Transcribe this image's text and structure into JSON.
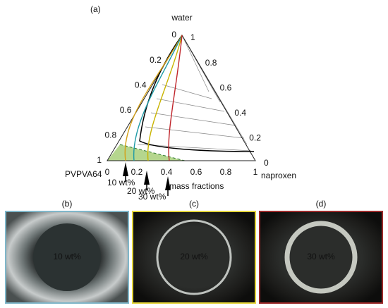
{
  "panel_a": {
    "label": "(a)",
    "apex_top": "water",
    "apex_left": "PVPVA64",
    "apex_right": "naproxen",
    "left_edge_ticks": [
      0,
      0.2,
      0.4,
      0.6,
      0.8,
      1
    ],
    "right_edge_ticks": [
      1,
      0.8,
      0.6,
      0.4,
      0.2,
      0
    ],
    "bottom_ticks": [
      0,
      0.2,
      0.4,
      0.6,
      0.8,
      1
    ],
    "axis_note": "mass fractions",
    "arrows": [
      {
        "label": "10 wt%",
        "color": "#1e9aa6"
      },
      {
        "label": "20 wt%",
        "color": "#c9b400"
      },
      {
        "label": "30 wt%",
        "color": "#c0262c"
      }
    ]
  },
  "photos": [
    {
      "label": "(b)",
      "text": "10 wt%",
      "border": "#7fb6c9"
    },
    {
      "label": "(c)",
      "text": "20 wt%",
      "border": "#e4d53a"
    },
    {
      "label": "(d)",
      "text": "30 wt%",
      "border": "#9b2a2a"
    }
  ]
}
